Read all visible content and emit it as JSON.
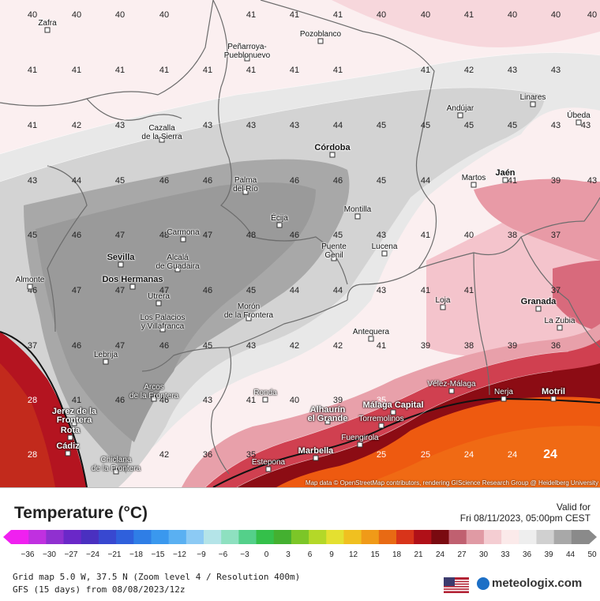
{
  "legend": {
    "title": "Temperature (°C)",
    "valid_label": "Valid for",
    "valid_time": "Fri 08/11/2023, 05:00pm CEST",
    "ticks": [
      "−36",
      "−30",
      "−27",
      "−24",
      "−21",
      "−18",
      "−15",
      "−12",
      "−9",
      "−6",
      "−3",
      "0",
      "3",
      "6",
      "9",
      "12",
      "15",
      "18",
      "21",
      "24",
      "27",
      "30",
      "33",
      "36",
      "39",
      "44",
      "50"
    ],
    "colors": [
      "#f020f0",
      "#c030e0",
      "#9030d0",
      "#6a28c8",
      "#4a30c0",
      "#3848d0",
      "#2f60dc",
      "#2f7ee6",
      "#3a98ee",
      "#5ab0f2",
      "#8ccaf4",
      "#b4e4e8",
      "#8ee0c0",
      "#54d08a",
      "#34c04a",
      "#44b030",
      "#7cc628",
      "#b4d828",
      "#e4e030",
      "#f0c020",
      "#f09a18",
      "#e86a14",
      "#d8341a",
      "#b01018",
      "#7a0a10",
      "#c06070",
      "#e09aa4",
      "#f4cdd2",
      "#fbeaea",
      "#eeeeee",
      "#d0d0d0",
      "#a8a8a8",
      "#8a8a8a"
    ]
  },
  "info": {
    "grid_line": "Grid map 5.0 W, 37.5 N (Zoom level 4 / Resolution 400m)",
    "model_line": "GFS (15 days) from  08/08/2023/12z",
    "brand": "meteologix.com"
  },
  "map": {
    "attribution": "Map data © OpenStreetMap contributors, rendering GIScience Research Group @ Heidelberg University",
    "values": [
      "40",
      "40",
      "40",
      "40",
      "41",
      "41",
      "41",
      "40",
      "40",
      "41",
      "40",
      "40",
      "40",
      "41",
      "41",
      "41",
      "41",
      "41",
      "41",
      "41",
      "41",
      "41",
      "42",
      "43",
      "43",
      "41",
      "42",
      "43",
      "43",
      "43",
      "43",
      "44",
      "45",
      "45",
      "45",
      "45",
      "43",
      "43",
      "43",
      "44",
      "45",
      "46",
      "46",
      "46",
      "46",
      "45",
      "44",
      "41",
      "39",
      "43",
      "45",
      "46",
      "47",
      "48",
      "47",
      "48",
      "46",
      "45",
      "43",
      "41",
      "40",
      "38",
      "37",
      "46",
      "47",
      "47",
      "47",
      "46",
      "45",
      "44",
      "44",
      "43",
      "41",
      "41",
      "37",
      "37",
      "46",
      "47",
      "46",
      "45",
      "43",
      "42",
      "42",
      "41",
      "39",
      "38",
      "39",
      "36",
      "41",
      "46",
      "46",
      "43",
      "41",
      "40",
      "39",
      "35",
      "28",
      "28",
      "42",
      "36",
      "35",
      "25",
      "25",
      "24",
      "24",
      "24"
    ],
    "places": [
      "Zafra",
      "Peñarroya-\nPueblonuevo",
      "Pozoblanco",
      "Andújar",
      "Linares",
      "Úbeda",
      "Cazalla\nde la Sierra",
      "Córdoba",
      "Palma\ndel Río",
      "Jaén",
      "Martos",
      "Écija",
      "Montilla",
      "Carmona",
      "Sevilla",
      "Alcalá\nde Guadaira",
      "Puente\nGenil",
      "Lucena",
      "Dos Hermanas",
      "Almonte",
      "Utrera",
      "Los Palacios\ny Villafranca",
      "Morón\nde la Frontera",
      "Loja",
      "Granada",
      "La Zubia",
      "Antequera",
      "Lebrija",
      "Arcos\nde la Frontera",
      "Ronda",
      "Vélez-Málaga",
      "Nerja",
      "Motril",
      "Jerez de la\nFrontera",
      "Alhaurín\nel Grande",
      "Málaga Capital",
      "Torremolinos",
      "Fuengirola",
      "Rota",
      "Cádiz",
      "Chiclana\nde la Frontera",
      "Marbella",
      "Estepona"
    ]
  }
}
